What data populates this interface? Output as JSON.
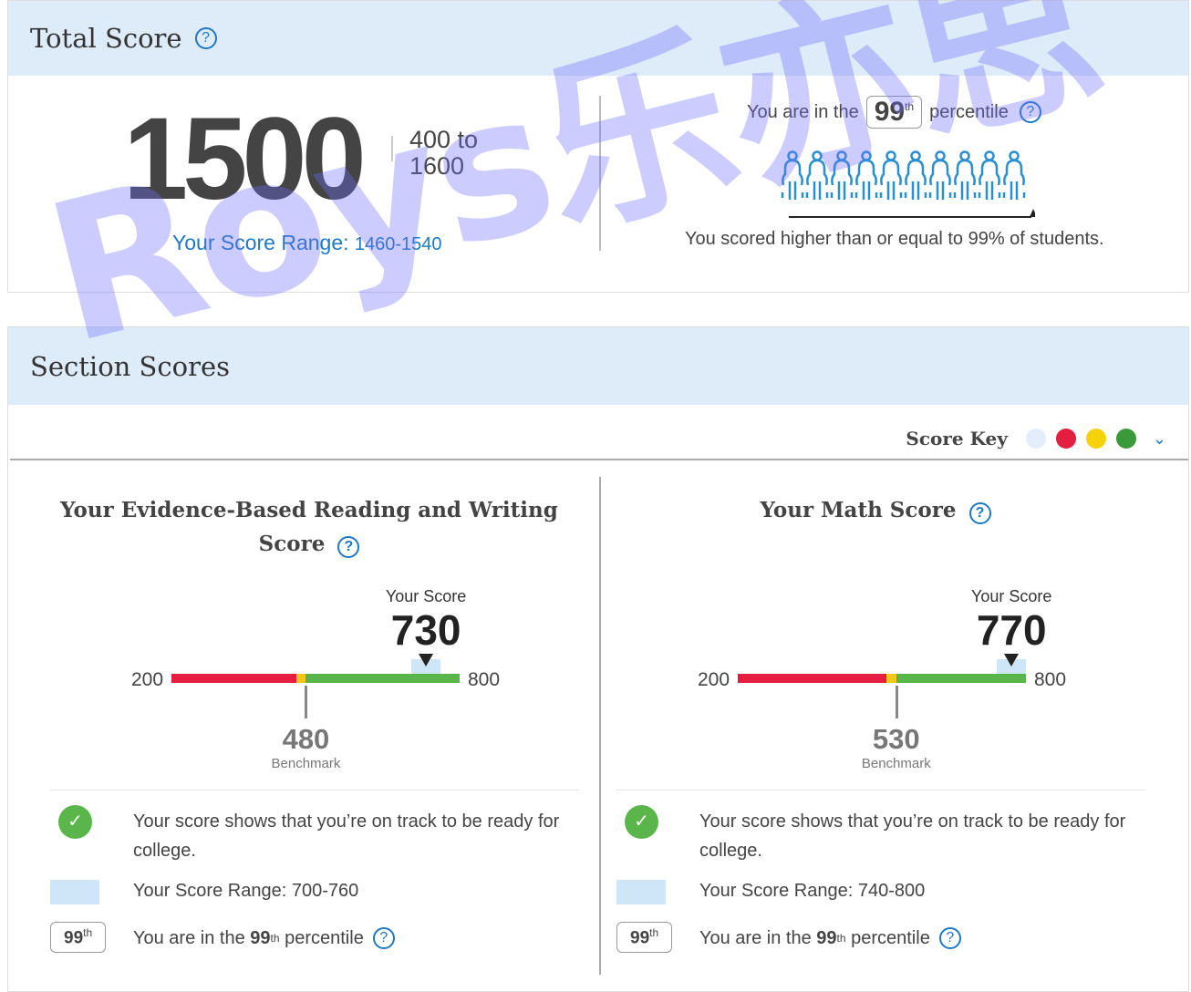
{
  "total": {
    "title": "Total Score",
    "score": "1500",
    "range_low": "400 to",
    "range_high": "1600",
    "score_range_label": "Your Score Range:",
    "score_range": "1460-1540",
    "pct_prefix": "You are in the",
    "pct": "99",
    "pct_suffix": "th",
    "pct_word": "percentile",
    "pct_statement": "You scored higher than or equal to 99% of students.",
    "people_icons": 10
  },
  "sections": {
    "title": "Section Scores",
    "score_key_label": "Score Key",
    "score_key_colors": [
      "#e3eefa",
      "#e41e3f",
      "#f5d20a",
      "#3a9a3a"
    ]
  },
  "columns": [
    {
      "title_line1": "Your Evidence-Based Reading and Writing",
      "title_line2": "Score",
      "your_score_label": "Your Score",
      "score": "730",
      "min": "200",
      "max": "800",
      "benchmark": "480",
      "benchmark_label": "Benchmark",
      "yellow_from": 460,
      "range": [
        700,
        760
      ],
      "status": "Your score shows that you’re on track to be ready for college.",
      "range_text": "Your Score Range: 700-760",
      "pct_badge": "99",
      "pct_prefix": "You are in the",
      "pct": "99",
      "pct_sup": "th",
      "pct_suffix": "percentile"
    },
    {
      "title_line1": "Your Math Score",
      "title_line2": "",
      "your_score_label": "Your Score",
      "score": "770",
      "min": "200",
      "max": "800",
      "benchmark": "530",
      "benchmark_label": "Benchmark",
      "yellow_from": 510,
      "range": [
        740,
        800
      ],
      "status": "Your score shows that you’re on track to be ready for college.",
      "range_text": "Your Score Range: 740-800",
      "pct_badge": "99",
      "pct_prefix": "You are in the",
      "pct": "99",
      "pct_sup": "th",
      "pct_suffix": "percentile"
    }
  ],
  "colors": {
    "red": "#e41e3f",
    "yellow": "#f5c518",
    "green": "#5ab54a",
    "range": "#cfe5f8",
    "check": "#5ab54a",
    "accent": "#1e78c2"
  },
  "watermark": "Roys乐亦思"
}
